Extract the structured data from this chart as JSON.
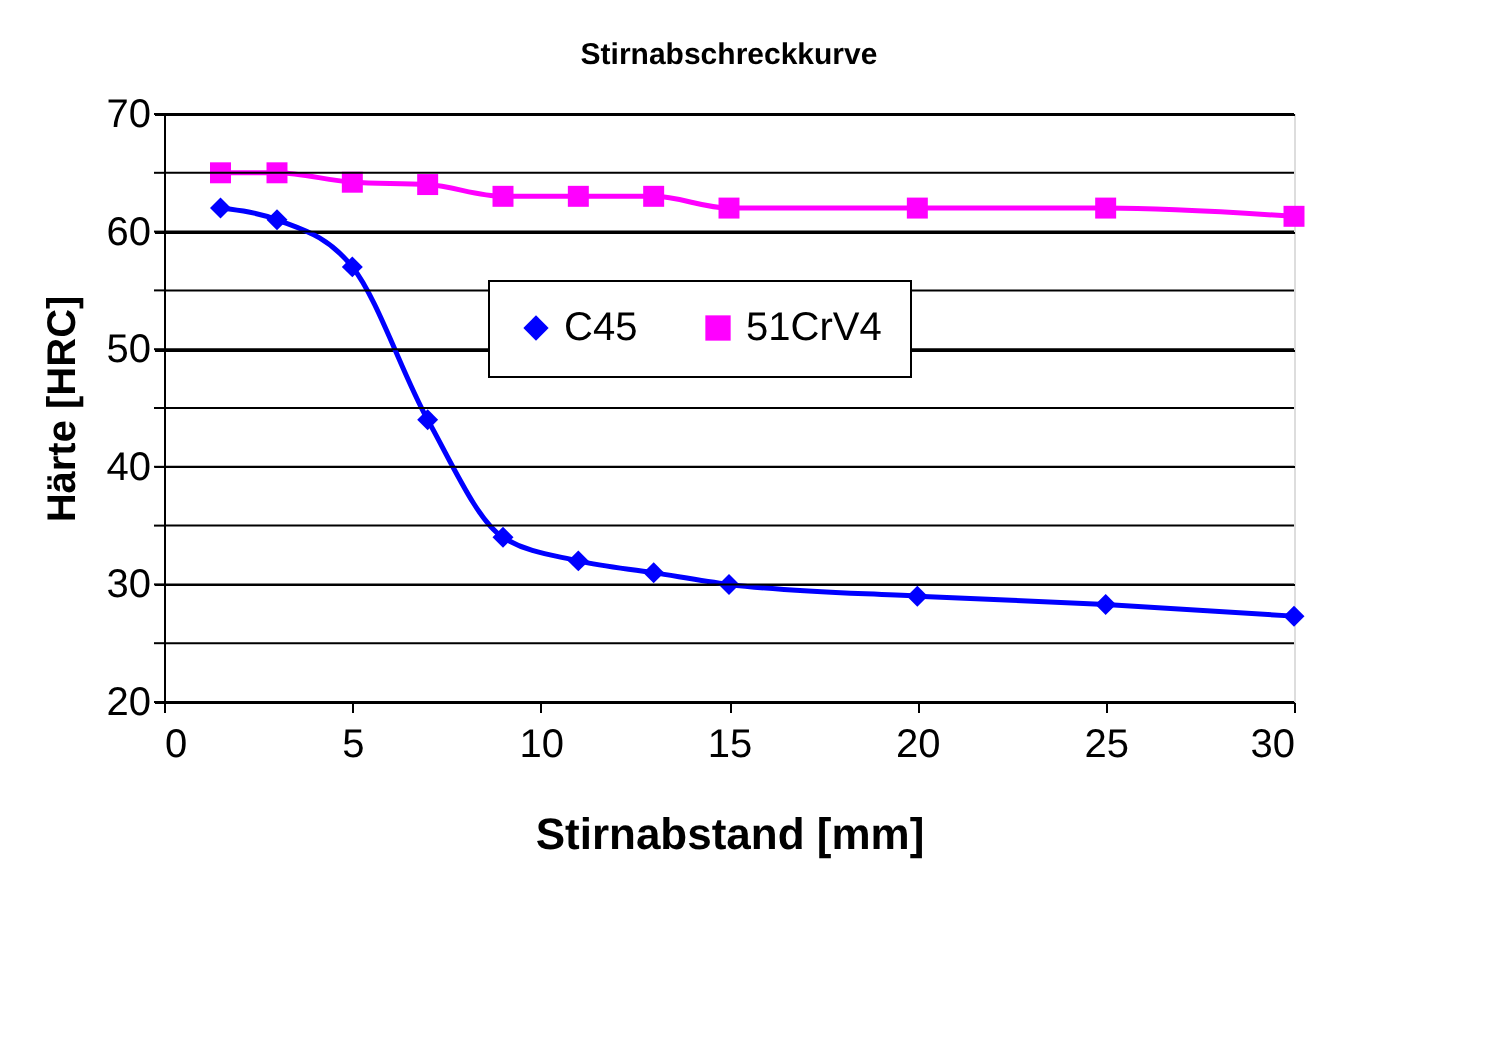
{
  "chart_data": {
    "type": "line",
    "title": "Stirnabschreckkurve",
    "xlabel": "Stirnabstand [mm]",
    "ylabel": "Härte [HRC]",
    "x": [
      1.5,
      3,
      5,
      7,
      9,
      11,
      13,
      15,
      20,
      25,
      30
    ],
    "series": [
      {
        "name": "C45",
        "color": "#0000ff",
        "marker": "diamond",
        "values": [
          62,
          61,
          57,
          44,
          34,
          32,
          31,
          30,
          29,
          28.3,
          27.3
        ]
      },
      {
        "name": "51CrV4",
        "color": "#ff00ff",
        "marker": "square",
        "values": [
          65,
          65,
          64.2,
          64,
          63,
          63,
          63,
          62,
          62,
          62,
          61.3
        ]
      }
    ],
    "xlim": [
      0,
      30
    ],
    "xticks": [
      0,
      5,
      10,
      15,
      20,
      25,
      30
    ],
    "ylim": [
      20,
      70
    ],
    "yticks": [
      20,
      {
        "value": 25,
        "label": null
      },
      30,
      {
        "value": 35,
        "label": null
      },
      40,
      {
        "value": 45,
        "label": null
      },
      50,
      {
        "value": 55,
        "label": null
      },
      60,
      {
        "value": 65,
        "label": null
      },
      70
    ],
    "grid": "y",
    "legend": "right",
    "line_style": "solid"
  }
}
